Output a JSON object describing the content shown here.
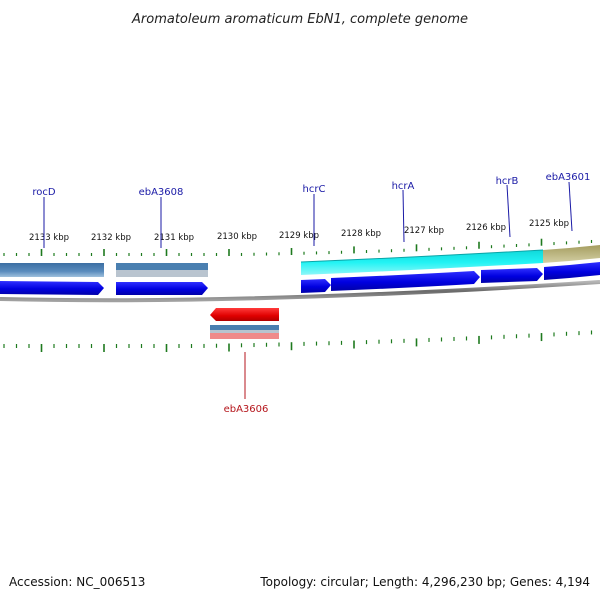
{
  "title": "Aromatoleum aromaticum EbN1, complete genome",
  "footer": {
    "accession": "Accession: NC_006513",
    "summary": "Topology: circular; Length: 4,296,230 bp; Genes: 4,194"
  },
  "colors": {
    "forward_label": "#1a1aa6",
    "reverse_label": "#b5161c",
    "cds_forward": "#0a0adc",
    "cds_reverse": "#e01010",
    "gene_feature": "#4a7fb0",
    "highlight_feature": "#16e8ea",
    "other_feature": "#b7b27a",
    "tick": "#1e7a1e",
    "backbone": "#8a8a8a"
  },
  "scale": {
    "unit": "kbp",
    "labels": [
      "2133 kbp",
      "2132 kbp",
      "2131 kbp",
      "2130 kbp",
      "2129 kbp",
      "2128 kbp",
      "2127 kbp",
      "2126 kbp",
      "2125 kbp"
    ]
  },
  "genes": [
    {
      "name": "rocD",
      "strand": "forward"
    },
    {
      "name": "ebA3608",
      "strand": "forward"
    },
    {
      "name": "hcrC",
      "strand": "forward"
    },
    {
      "name": "hcrA",
      "strand": "forward"
    },
    {
      "name": "hcrB",
      "strand": "forward"
    },
    {
      "name": "ebA3601",
      "strand": "forward"
    },
    {
      "name": "ebA3606",
      "strand": "reverse"
    }
  ]
}
